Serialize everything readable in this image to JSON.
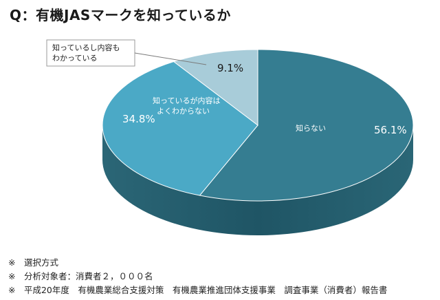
{
  "chart_data": {
    "type": "pie",
    "title": "Q：有機JASマークを知っているか",
    "slices": [
      {
        "label": "知らない",
        "value": 56.1,
        "value_label": "56.1%",
        "color": "#357d91"
      },
      {
        "label": "知っているが内容はよくわからない",
        "label_lines": [
          "知っているが内容は",
          "よくわからない"
        ],
        "value": 34.8,
        "value_label": "34.8%",
        "color": "#4ba9c6"
      },
      {
        "label": "知っているし内容もわかっている",
        "label_lines": [
          "知っているし内容も",
          "わかっている"
        ],
        "value": 9.1,
        "value_label": "9.1%",
        "color": "#a8ccd9"
      }
    ],
    "legend": "none",
    "style": "3d"
  },
  "notes": [
    "※　選択方式",
    "※　分析対象者：消費者２，０００名",
    "※　平成20年度　有機農業総合支援対策　有機農業推進団体支援事業　調査事業（消費者）報告書"
  ]
}
